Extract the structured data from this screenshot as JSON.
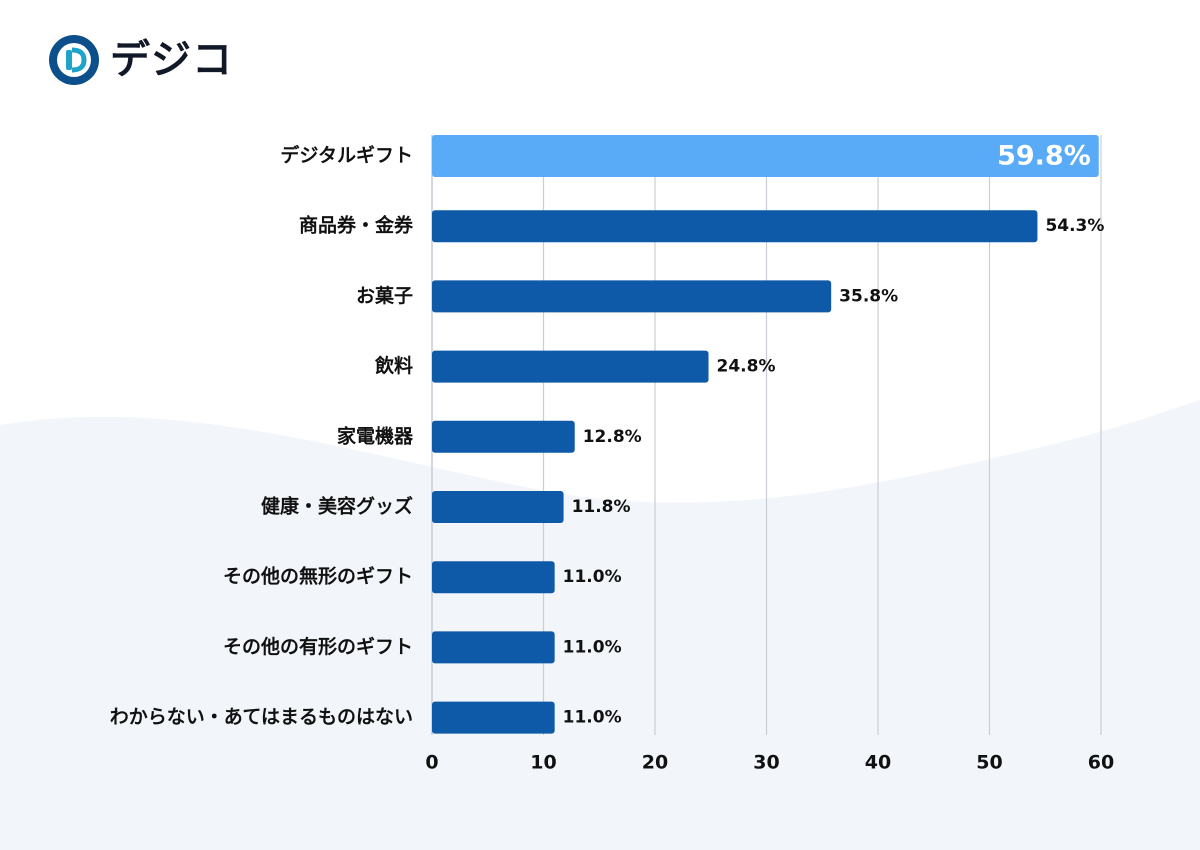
{
  "brand": {
    "name": "デジコ",
    "colors": {
      "logo_dark": "#0d4f8b",
      "logo_light": "#1fa3c8",
      "text": "#111827"
    }
  },
  "colors": {
    "bar": "#0f5aa8",
    "bar_highlight": "#5aabf7",
    "grid": "#c9ced6",
    "background_wave": "#f2f6fa"
  },
  "chart_data": {
    "type": "bar",
    "orientation": "horizontal",
    "categories": [
      "デジタルギフト",
      "商品券・金券",
      "お菓子",
      "飲料",
      "家電機器",
      "健康・美容グッズ",
      "その他の無形のギフト",
      "その他の有形のギフト",
      "わからない・あてはまるものはない"
    ],
    "values": [
      59.8,
      54.3,
      35.8,
      24.8,
      12.8,
      11.8,
      11.0,
      11.0,
      11.0
    ],
    "value_labels": [
      "59.8%",
      "54.3%",
      "35.8%",
      "24.8%",
      "12.8%",
      "11.8%",
      "11.0%",
      "11.0%",
      "11.0%"
    ],
    "highlight_index": 0,
    "xlim": [
      0,
      60
    ],
    "xticks": [
      0,
      10,
      20,
      30,
      40,
      50,
      60
    ],
    "title": "",
    "xlabel": "",
    "ylabel": "",
    "grid": true
  }
}
